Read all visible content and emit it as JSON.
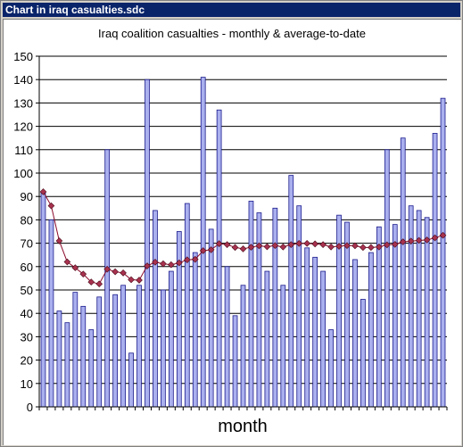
{
  "window": {
    "title": "Chart in iraq casualties.sdc"
  },
  "colors": {
    "bar_fill": "#aab0ee",
    "bar_stroke": "#1a1a8c",
    "line": "#8b0a2a",
    "marker": "#a8324f",
    "grid": "#000000"
  },
  "chart_data": {
    "type": "bar",
    "title": "Iraq coalition casualties - monthly & average-to-date",
    "xlabel": "month",
    "ylabel": "",
    "ylim": [
      0,
      150
    ],
    "yticks": [
      0,
      10,
      20,
      30,
      40,
      50,
      60,
      70,
      80,
      90,
      100,
      110,
      120,
      130,
      140,
      150
    ],
    "grid": true,
    "legend": "none",
    "series": [
      {
        "type": "bar",
        "values": [
          92,
          80,
          41,
          36,
          49,
          43,
          33,
          47,
          110,
          48,
          52,
          23,
          52,
          140,
          84,
          50,
          58,
          75,
          87,
          66,
          141,
          76,
          127,
          60,
          39,
          52,
          88,
          83,
          58,
          85,
          52,
          99,
          86,
          68,
          64,
          58,
          33,
          82,
          79,
          63,
          46,
          66,
          77,
          110,
          78,
          115,
          86,
          84,
          81,
          117,
          132
        ]
      },
      {
        "type": "line",
        "values": [
          92,
          86,
          71,
          62,
          59.5,
          56.8,
          53.4,
          52.6,
          58.9,
          57.8,
          57.3,
          54.4,
          54.2,
          60.3,
          61.9,
          61.2,
          60.8,
          61.6,
          62.9,
          63.1,
          66.8,
          67.2,
          69.8,
          69.4,
          68.2,
          67.6,
          68.3,
          68.9,
          68.5,
          69.0,
          68.4,
          69.4,
          69.9,
          69.9,
          69.7,
          69.4,
          68.4,
          68.7,
          69.0,
          68.9,
          68.2,
          68.2,
          68.4,
          69.3,
          69.5,
          70.6,
          70.9,
          71.2,
          71.4,
          72.3,
          73.4
        ]
      }
    ]
  }
}
